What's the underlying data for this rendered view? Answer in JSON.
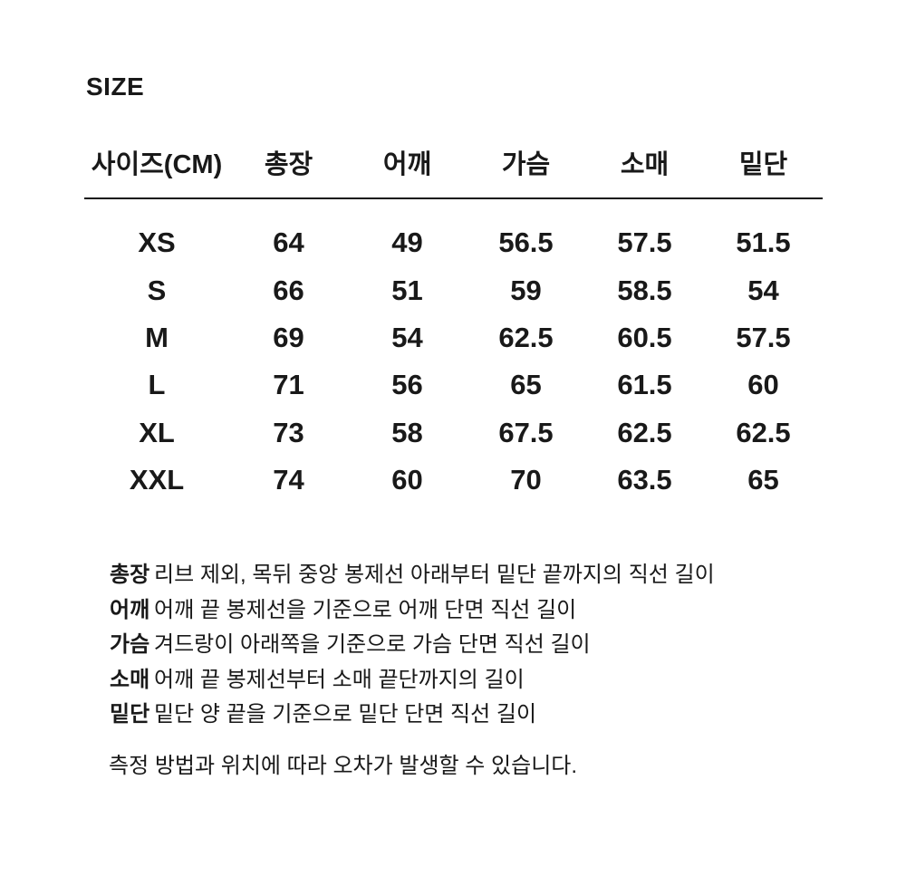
{
  "page": {
    "title": "SIZE",
    "note": "측정 방법과 위치에 따라 오차가 발생할 수 있습니다."
  },
  "size_table": {
    "unit": "CM",
    "headers": [
      "사이즈(CM)",
      "총장",
      "어깨",
      "가슴",
      "소매",
      "밑단"
    ],
    "rows": [
      {
        "size": "XS",
        "values": [
          "64",
          "49",
          "56.5",
          "57.5",
          "51.5"
        ]
      },
      {
        "size": "S",
        "values": [
          "66",
          "51",
          "59",
          "58.5",
          "54"
        ]
      },
      {
        "size": "M",
        "values": [
          "69",
          "54",
          "62.5",
          "60.5",
          "57.5"
        ]
      },
      {
        "size": "L",
        "values": [
          "71",
          "56",
          "65",
          "61.5",
          "60"
        ]
      },
      {
        "size": "XL",
        "values": [
          "73",
          "58",
          "67.5",
          "62.5",
          "62.5"
        ]
      },
      {
        "size": "XXL",
        "values": [
          "74",
          "60",
          "70",
          "63.5",
          "65"
        ]
      }
    ]
  },
  "definitions": [
    {
      "term": "총장",
      "description": "리브 제외, 목뒤 중앙 봉제선 아래부터 밑단 끝까지의 직선 길이"
    },
    {
      "term": "어깨",
      "description": "어깨 끝 봉제선을 기준으로 어깨 단면 직선 길이"
    },
    {
      "term": "가슴",
      "description": "겨드랑이 아래쪽을 기준으로 가슴 단면 직선 길이"
    },
    {
      "term": "소매",
      "description": "어깨 끝 봉제선부터 소매 끝단까지의 길이"
    },
    {
      "term": "밑단",
      "description": "밑단 양 끝을 기준으로 밑단 단면 직선 길이"
    }
  ],
  "colors": {
    "background": "#ffffff",
    "text": "#191919",
    "divider": "#161616"
  }
}
